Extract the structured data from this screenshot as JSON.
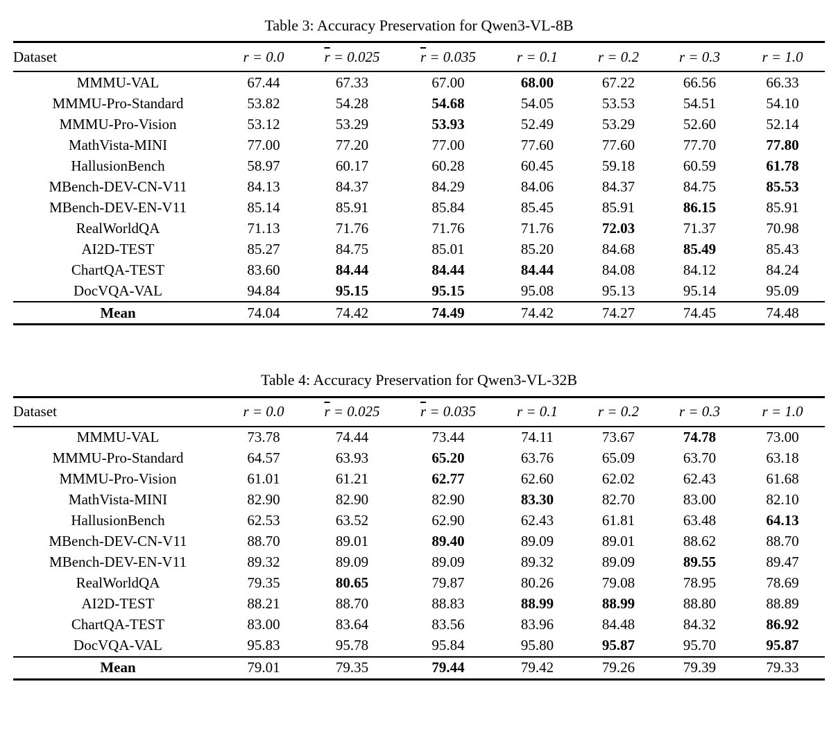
{
  "page": {
    "background": "#ffffff",
    "text_color": "#000000"
  },
  "tables": [
    {
      "caption": "Table 3: Accuracy Preservation for Qwen3-VL-8B",
      "header": {
        "dataset_label": "Dataset",
        "r_columns": [
          {
            "var": "r",
            "bar": false,
            "rest": "= 0.0"
          },
          {
            "var": "r",
            "bar": true,
            "rest": "= 0.025"
          },
          {
            "var": "r",
            "bar": true,
            "rest": "= 0.035"
          },
          {
            "var": "r",
            "bar": false,
            "rest": "= 0.1"
          },
          {
            "var": "r",
            "bar": false,
            "rest": "= 0.2"
          },
          {
            "var": "r",
            "bar": false,
            "rest": "= 0.3"
          },
          {
            "var": "r",
            "bar": false,
            "rest": "= 1.0"
          }
        ]
      },
      "rows": [
        {
          "dataset": "MMMU-VAL",
          "values": [
            "67.44",
            "67.33",
            "67.00",
            "68.00",
            "67.22",
            "66.56",
            "66.33"
          ],
          "bold": [
            3
          ]
        },
        {
          "dataset": "MMMU-Pro-Standard",
          "values": [
            "53.82",
            "54.28",
            "54.68",
            "54.05",
            "53.53",
            "54.51",
            "54.10"
          ],
          "bold": [
            2
          ]
        },
        {
          "dataset": "MMMU-Pro-Vision",
          "values": [
            "53.12",
            "53.29",
            "53.93",
            "52.49",
            "53.29",
            "52.60",
            "52.14"
          ],
          "bold": [
            2
          ]
        },
        {
          "dataset": "MathVista-MINI",
          "values": [
            "77.00",
            "77.20",
            "77.00",
            "77.60",
            "77.60",
            "77.70",
            "77.80"
          ],
          "bold": [
            6
          ]
        },
        {
          "dataset": "HallusionBench",
          "values": [
            "58.97",
            "60.17",
            "60.28",
            "60.45",
            "59.18",
            "60.59",
            "61.78"
          ],
          "bold": [
            6
          ]
        },
        {
          "dataset": "MBench-DEV-CN-V11",
          "values": [
            "84.13",
            "84.37",
            "84.29",
            "84.06",
            "84.37",
            "84.75",
            "85.53"
          ],
          "bold": [
            6
          ]
        },
        {
          "dataset": "MBench-DEV-EN-V11",
          "values": [
            "85.14",
            "85.91",
            "85.84",
            "85.45",
            "85.91",
            "86.15",
            "85.91"
          ],
          "bold": [
            5
          ]
        },
        {
          "dataset": "RealWorldQA",
          "values": [
            "71.13",
            "71.76",
            "71.76",
            "71.76",
            "72.03",
            "71.37",
            "70.98"
          ],
          "bold": [
            4
          ]
        },
        {
          "dataset": "AI2D-TEST",
          "values": [
            "85.27",
            "84.75",
            "85.01",
            "85.20",
            "84.68",
            "85.49",
            "85.43"
          ],
          "bold": [
            5
          ]
        },
        {
          "dataset": "ChartQA-TEST",
          "values": [
            "83.60",
            "84.44",
            "84.44",
            "84.44",
            "84.08",
            "84.12",
            "84.24"
          ],
          "bold": [
            1,
            2,
            3
          ]
        },
        {
          "dataset": "DocVQA-VAL",
          "values": [
            "94.84",
            "95.15",
            "95.15",
            "95.08",
            "95.13",
            "95.14",
            "95.09"
          ],
          "bold": [
            1,
            2
          ]
        }
      ],
      "mean": {
        "label": "Mean",
        "values": [
          "74.04",
          "74.42",
          "74.49",
          "74.42",
          "74.27",
          "74.45",
          "74.48"
        ],
        "bold": [
          2
        ]
      }
    },
    {
      "caption": "Table 4: Accuracy Preservation for Qwen3-VL-32B",
      "header": {
        "dataset_label": "Dataset",
        "r_columns": [
          {
            "var": "r",
            "bar": false,
            "rest": "= 0.0"
          },
          {
            "var": "r",
            "bar": true,
            "rest": "= 0.025"
          },
          {
            "var": "r",
            "bar": true,
            "rest": "= 0.035"
          },
          {
            "var": "r",
            "bar": false,
            "rest": "= 0.1"
          },
          {
            "var": "r",
            "bar": false,
            "rest": "= 0.2"
          },
          {
            "var": "r",
            "bar": false,
            "rest": "= 0.3"
          },
          {
            "var": "r",
            "bar": false,
            "rest": "= 1.0"
          }
        ]
      },
      "rows": [
        {
          "dataset": "MMMU-VAL",
          "values": [
            "73.78",
            "74.44",
            "73.44",
            "74.11",
            "73.67",
            "74.78",
            "73.00"
          ],
          "bold": [
            5
          ]
        },
        {
          "dataset": "MMMU-Pro-Standard",
          "values": [
            "64.57",
            "63.93",
            "65.20",
            "63.76",
            "65.09",
            "63.70",
            "63.18"
          ],
          "bold": [
            2
          ]
        },
        {
          "dataset": "MMMU-Pro-Vision",
          "values": [
            "61.01",
            "61.21",
            "62.77",
            "62.60",
            "62.02",
            "62.43",
            "61.68"
          ],
          "bold": [
            2
          ]
        },
        {
          "dataset": "MathVista-MINI",
          "values": [
            "82.90",
            "82.90",
            "82.90",
            "83.30",
            "82.70",
            "83.00",
            "82.10"
          ],
          "bold": [
            3
          ]
        },
        {
          "dataset": "HallusionBench",
          "values": [
            "62.53",
            "63.52",
            "62.90",
            "62.43",
            "61.81",
            "63.48",
            "64.13"
          ],
          "bold": [
            6
          ]
        },
        {
          "dataset": "MBench-DEV-CN-V11",
          "values": [
            "88.70",
            "89.01",
            "89.40",
            "89.09",
            "89.01",
            "88.62",
            "88.70"
          ],
          "bold": [
            2
          ]
        },
        {
          "dataset": "MBench-DEV-EN-V11",
          "values": [
            "89.32",
            "89.09",
            "89.09",
            "89.32",
            "89.09",
            "89.55",
            "89.47"
          ],
          "bold": [
            5
          ]
        },
        {
          "dataset": "RealWorldQA",
          "values": [
            "79.35",
            "80.65",
            "79.87",
            "80.26",
            "79.08",
            "78.95",
            "78.69"
          ],
          "bold": [
            1
          ]
        },
        {
          "dataset": "AI2D-TEST",
          "values": [
            "88.21",
            "88.70",
            "88.83",
            "88.99",
            "88.99",
            "88.80",
            "88.89"
          ],
          "bold": [
            3,
            4
          ]
        },
        {
          "dataset": "ChartQA-TEST",
          "values": [
            "83.00",
            "83.64",
            "83.56",
            "83.96",
            "84.48",
            "84.32",
            "86.92"
          ],
          "bold": [
            6
          ]
        },
        {
          "dataset": "DocVQA-VAL",
          "values": [
            "95.83",
            "95.78",
            "95.84",
            "95.80",
            "95.87",
            "95.70",
            "95.87"
          ],
          "bold": [
            4,
            6
          ]
        }
      ],
      "mean": {
        "label": "Mean",
        "values": [
          "79.01",
          "79.35",
          "79.44",
          "79.42",
          "79.26",
          "79.39",
          "79.33"
        ],
        "bold": [
          2
        ]
      }
    }
  ]
}
